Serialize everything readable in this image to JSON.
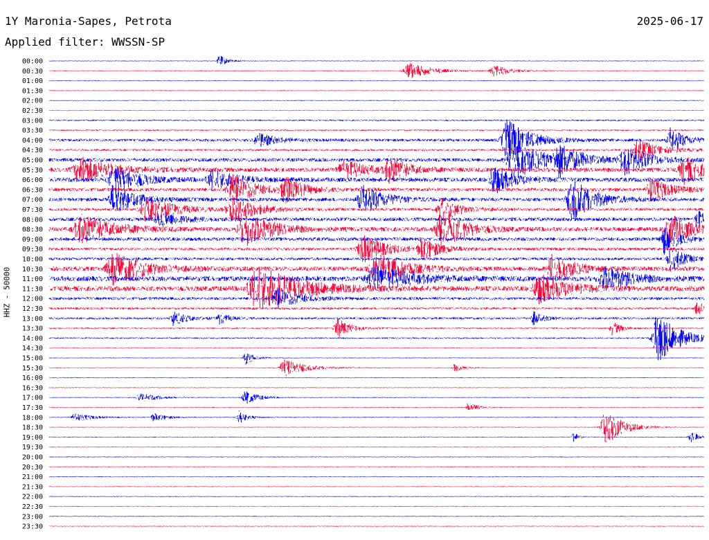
{
  "header": {
    "station": "1Y Maronia-Sapes, Petrota",
    "date": "2025-06-17",
    "filter": "Applied filter: WWSSN-SP"
  },
  "chart_data": {
    "type": "line",
    "title": "1Y Maronia-Sapes, Petrota",
    "ylabel": "HHZ - 50000",
    "series_colors": [
      "#0000ff",
      "#ff0033"
    ],
    "row_interval_minutes": 30,
    "row_labels": [
      "00:00",
      "00:30",
      "01:00",
      "01:30",
      "02:00",
      "02:30",
      "03:00",
      "03:30",
      "04:00",
      "04:30",
      "05:00",
      "05:30",
      "06:00",
      "06:30",
      "07:00",
      "07:30",
      "08:00",
      "08:30",
      "09:00",
      "09:30",
      "10:00",
      "10:30",
      "11:00",
      "11:30",
      "12:00",
      "12:30",
      "13:00",
      "13:30",
      "14:00",
      "14:30",
      "15:00",
      "15:30",
      "16:00",
      "16:30",
      "17:00",
      "17:30",
      "18:00",
      "18:30",
      "19:00",
      "19:30",
      "20:00",
      "20:30",
      "21:00",
      "21:30",
      "22:00",
      "22:30",
      "23:00",
      "23:30"
    ],
    "noise_level": [
      1,
      1,
      1,
      1,
      1,
      1,
      2,
      2,
      4,
      3,
      5,
      6,
      6,
      5,
      5,
      4,
      5,
      6,
      5,
      4,
      4,
      6,
      7,
      7,
      4,
      3,
      3,
      2,
      2,
      1,
      1,
      1,
      1,
      1,
      1,
      1,
      1,
      1,
      1,
      1,
      1,
      1,
      1,
      1,
      1,
      1,
      1,
      1
    ],
    "events": [
      {
        "row": 0,
        "at": 0.26,
        "amp": 8,
        "width": 0.02
      },
      {
        "row": 1,
        "at": 0.55,
        "amp": 12,
        "width": 0.05
      },
      {
        "row": 1,
        "at": 0.68,
        "amp": 8,
        "width": 0.04
      },
      {
        "row": 8,
        "at": 0.32,
        "amp": 10,
        "width": 0.04
      },
      {
        "row": 8,
        "at": 0.7,
        "amp": 30,
        "width": 0.05
      },
      {
        "row": 8,
        "at": 0.95,
        "amp": 18,
        "width": 0.03
      },
      {
        "row": 9,
        "at": 0.9,
        "amp": 14,
        "width": 0.05
      },
      {
        "row": 10,
        "at": 0.71,
        "amp": 30,
        "width": 0.06
      },
      {
        "row": 10,
        "at": 0.78,
        "amp": 20,
        "width": 0.05
      },
      {
        "row": 10,
        "at": 0.88,
        "amp": 20,
        "width": 0.05
      },
      {
        "row": 11,
        "at": 0.05,
        "amp": 18,
        "width": 0.07
      },
      {
        "row": 11,
        "at": 0.45,
        "amp": 14,
        "width": 0.05
      },
      {
        "row": 11,
        "at": 0.52,
        "amp": 18,
        "width": 0.04
      },
      {
        "row": 11,
        "at": 0.97,
        "amp": 20,
        "width": 0.04
      },
      {
        "row": 12,
        "at": 0.1,
        "amp": 22,
        "width": 0.05
      },
      {
        "row": 12,
        "at": 0.25,
        "amp": 14,
        "width": 0.05
      },
      {
        "row": 12,
        "at": 0.68,
        "amp": 20,
        "width": 0.04
      },
      {
        "row": 13,
        "at": 0.28,
        "amp": 22,
        "width": 0.05
      },
      {
        "row": 13,
        "at": 0.36,
        "amp": 18,
        "width": 0.04
      },
      {
        "row": 13,
        "at": 0.92,
        "amp": 18,
        "width": 0.04
      },
      {
        "row": 14,
        "at": 0.1,
        "amp": 20,
        "width": 0.05
      },
      {
        "row": 14,
        "at": 0.48,
        "amp": 20,
        "width": 0.05
      },
      {
        "row": 14,
        "at": 0.8,
        "amp": 30,
        "width": 0.05
      },
      {
        "row": 15,
        "at": 0.15,
        "amp": 18,
        "width": 0.06
      },
      {
        "row": 15,
        "at": 0.28,
        "amp": 20,
        "width": 0.05
      },
      {
        "row": 15,
        "at": 0.6,
        "amp": 16,
        "width": 0.04
      },
      {
        "row": 16,
        "at": 0.17,
        "amp": 10,
        "width": 0.05
      },
      {
        "row": 16,
        "at": 0.99,
        "amp": 14,
        "width": 0.02
      },
      {
        "row": 17,
        "at": 0.05,
        "amp": 20,
        "width": 0.07
      },
      {
        "row": 17,
        "at": 0.3,
        "amp": 24,
        "width": 0.06
      },
      {
        "row": 17,
        "at": 0.6,
        "amp": 28,
        "width": 0.05
      },
      {
        "row": 17,
        "at": 0.95,
        "amp": 20,
        "width": 0.05
      },
      {
        "row": 18,
        "at": 0.94,
        "amp": 22,
        "width": 0.03
      },
      {
        "row": 19,
        "at": 0.48,
        "amp": 20,
        "width": 0.05
      },
      {
        "row": 19,
        "at": 0.57,
        "amp": 16,
        "width": 0.04
      },
      {
        "row": 20,
        "at": 0.95,
        "amp": 18,
        "width": 0.03
      },
      {
        "row": 21,
        "at": 0.1,
        "amp": 22,
        "width": 0.07
      },
      {
        "row": 21,
        "at": 0.5,
        "amp": 24,
        "width": 0.06
      },
      {
        "row": 21,
        "at": 0.77,
        "amp": 20,
        "width": 0.05
      },
      {
        "row": 22,
        "at": 0.5,
        "amp": 18,
        "width": 0.08
      },
      {
        "row": 22,
        "at": 0.85,
        "amp": 16,
        "width": 0.06
      },
      {
        "row": 23,
        "at": 0.32,
        "amp": 32,
        "width": 0.09
      },
      {
        "row": 23,
        "at": 0.75,
        "amp": 20,
        "width": 0.06
      },
      {
        "row": 24,
        "at": 0.35,
        "amp": 14,
        "width": 0.05
      },
      {
        "row": 25,
        "at": 0.99,
        "amp": 10,
        "width": 0.02
      },
      {
        "row": 26,
        "at": 0.19,
        "amp": 10,
        "width": 0.03
      },
      {
        "row": 26,
        "at": 0.26,
        "amp": 8,
        "width": 0.02
      },
      {
        "row": 26,
        "at": 0.74,
        "amp": 10,
        "width": 0.02
      },
      {
        "row": 27,
        "at": 0.44,
        "amp": 14,
        "width": 0.03
      },
      {
        "row": 27,
        "at": 0.86,
        "amp": 10,
        "width": 0.02
      },
      {
        "row": 28,
        "at": 0.93,
        "amp": 36,
        "width": 0.05
      },
      {
        "row": 30,
        "at": 0.3,
        "amp": 10,
        "width": 0.02
      },
      {
        "row": 31,
        "at": 0.36,
        "amp": 12,
        "width": 0.05
      },
      {
        "row": 31,
        "at": 0.62,
        "amp": 6,
        "width": 0.02
      },
      {
        "row": 34,
        "at": 0.14,
        "amp": 6,
        "width": 0.04
      },
      {
        "row": 34,
        "at": 0.3,
        "amp": 10,
        "width": 0.03
      },
      {
        "row": 35,
        "at": 0.64,
        "amp": 8,
        "width": 0.02
      },
      {
        "row": 36,
        "at": 0.04,
        "amp": 6,
        "width": 0.04
      },
      {
        "row": 36,
        "at": 0.16,
        "amp": 6,
        "width": 0.03
      },
      {
        "row": 36,
        "at": 0.29,
        "amp": 10,
        "width": 0.02
      },
      {
        "row": 37,
        "at": 0.85,
        "amp": 26,
        "width": 0.04
      },
      {
        "row": 38,
        "at": 0.8,
        "amp": 10,
        "width": 0.01
      },
      {
        "row": 38,
        "at": 0.98,
        "amp": 8,
        "width": 0.02
      }
    ]
  }
}
